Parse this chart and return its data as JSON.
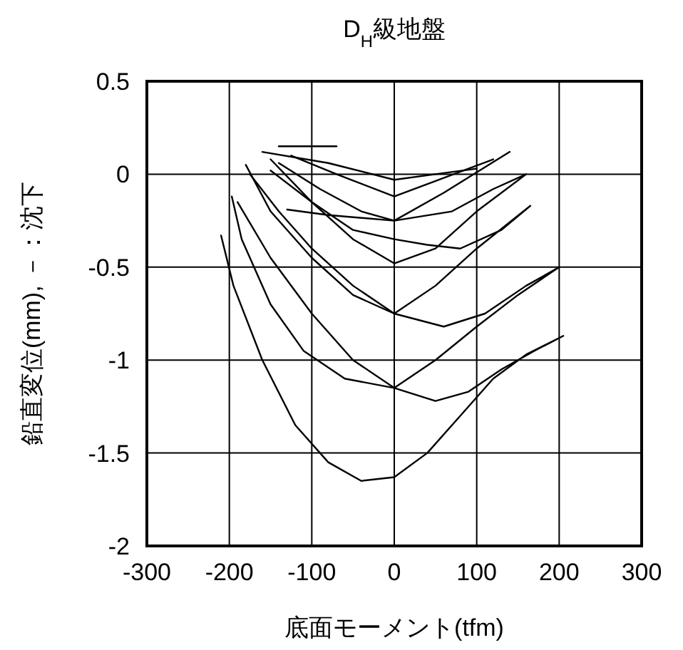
{
  "chart_data": {
    "type": "line",
    "title": "D$_{H}$級地盤",
    "xlabel": "底面モーメント(tfm)",
    "ylabel": "鉛直変位(mm), －：沈下",
    "xlim": [
      -300,
      300
    ],
    "xticks": [
      -300,
      -200,
      -100,
      0,
      100,
      200,
      300
    ],
    "ylim": [
      -2,
      0.5
    ],
    "yticks": [
      -2,
      -1.5,
      -1,
      -0.5,
      0,
      0.5
    ],
    "grid": true,
    "series": [
      {
        "color": "#000000",
        "x": [
          -210,
          -195,
          -160,
          -120,
          -80,
          -40,
          0,
          40,
          80,
          120,
          160,
          205,
          170,
          130,
          90,
          50,
          0,
          -50,
          -100,
          -150,
          -190
        ],
        "values": [
          -0.33,
          -0.6,
          -1.0,
          -1.35,
          -1.55,
          -1.65,
          -1.63,
          -1.5,
          -1.3,
          -1.1,
          -0.97,
          -0.87,
          -0.95,
          -1.05,
          -1.17,
          -1.22,
          -1.15,
          -1.0,
          -0.75,
          -0.45,
          -0.15
        ]
      },
      {
        "color": "#000000",
        "x": [
          -197,
          -185,
          -150,
          -110,
          -60,
          0,
          50,
          100,
          150,
          200,
          160,
          110,
          60,
          0,
          -50,
          -100,
          -140,
          -175
        ],
        "values": [
          -0.12,
          -0.35,
          -0.7,
          -0.95,
          -1.1,
          -1.15,
          -1.0,
          -0.82,
          -0.65,
          -0.5,
          -0.6,
          -0.75,
          -0.82,
          -0.75,
          -0.6,
          -0.4,
          -0.2,
          0.0
        ]
      },
      {
        "color": "#000000",
        "x": [
          -180,
          -150,
          -100,
          -50,
          0,
          50,
          100,
          165,
          130,
          80,
          40,
          0,
          -50,
          -100,
          -150
        ],
        "values": [
          0.05,
          -0.2,
          -0.45,
          -0.65,
          -0.75,
          -0.6,
          -0.4,
          -0.17,
          -0.3,
          -0.4,
          -0.38,
          -0.35,
          -0.3,
          -0.15,
          0.02
        ]
      },
      {
        "color": "#000000",
        "x": [
          -150,
          -100,
          -50,
          0,
          50,
          100,
          160,
          120,
          70,
          0,
          -80,
          -130
        ],
        "values": [
          0.08,
          -0.15,
          -0.35,
          -0.48,
          -0.4,
          -0.2,
          0.0,
          -0.08,
          -0.2,
          -0.25,
          -0.22,
          -0.19
        ]
      },
      {
        "color": "#000000",
        "x": [
          -140,
          -90,
          -40,
          0,
          60,
          140
        ],
        "values": [
          0.06,
          -0.08,
          -0.2,
          -0.25,
          -0.1,
          0.12
        ]
      },
      {
        "color": "#000000",
        "x": [
          -125,
          -70,
          0,
          60,
          120
        ],
        "values": [
          0.1,
          0.0,
          -0.12,
          -0.02,
          0.08
        ]
      },
      {
        "color": "#000000",
        "x": [
          -160,
          -80,
          0,
          50,
          100
        ],
        "values": [
          0.12,
          0.06,
          -0.03,
          0.0,
          0.03
        ]
      },
      {
        "color": "#000000",
        "x": [
          -140,
          -110,
          -70
        ],
        "values": [
          0.15,
          0.15,
          0.15
        ]
      }
    ]
  }
}
